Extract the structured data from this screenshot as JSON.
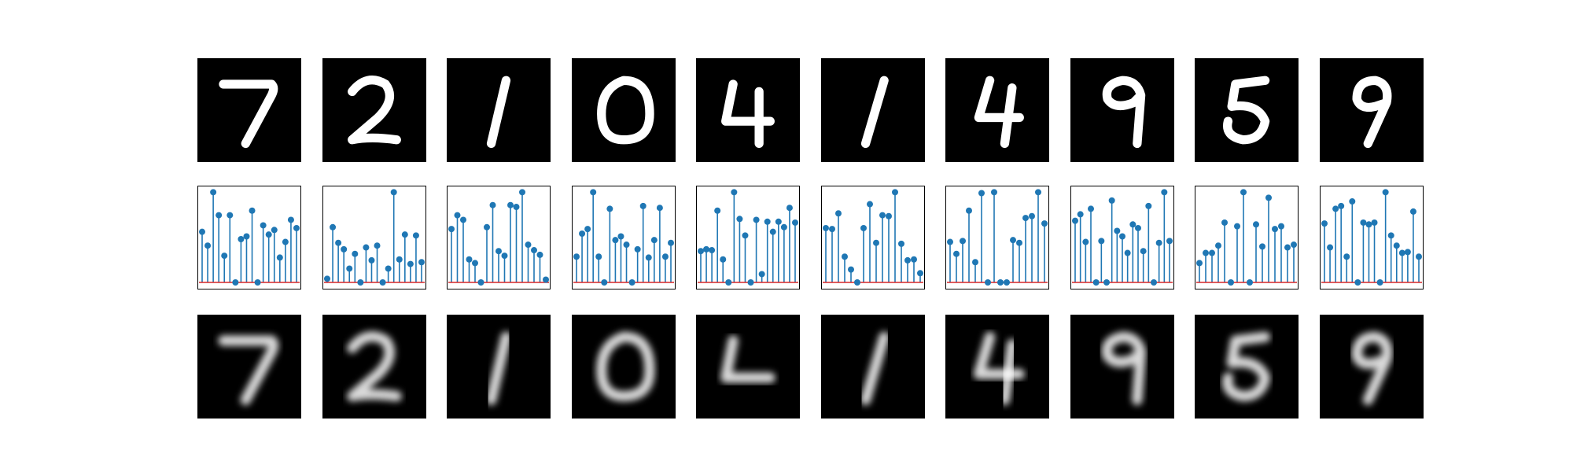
{
  "chart_data": {
    "type": "stem",
    "description_rows": [
      "original",
      "latent code",
      "reconstruction"
    ],
    "digits": [
      7,
      2,
      1,
      0,
      4,
      1,
      4,
      9,
      5,
      9
    ],
    "latent_codes": [
      [
        0.55,
        0.4,
        0.98,
        0.73,
        0.29,
        0.73,
        0.0,
        0.47,
        0.5,
        0.78,
        0.0,
        0.62,
        0.52,
        0.57,
        0.27,
        0.44,
        0.68,
        0.59
      ],
      [
        0.04,
        0.6,
        0.43,
        0.36,
        0.15,
        0.31,
        0.0,
        0.38,
        0.24,
        0.4,
        0.0,
        0.15,
        0.98,
        0.25,
        0.52,
        0.2,
        0.51,
        0.22
      ],
      [
        0.58,
        0.73,
        0.68,
        0.25,
        0.21,
        0.0,
        0.6,
        0.84,
        0.34,
        0.29,
        0.84,
        0.82,
        0.98,
        0.41,
        0.35,
        0.3,
        0.03
      ],
      [
        0.28,
        0.53,
        0.58,
        0.98,
        0.28,
        0.0,
        0.8,
        0.46,
        0.5,
        0.41,
        0.0,
        0.36,
        0.83,
        0.27,
        0.46,
        0.81,
        0.28,
        0.43
      ],
      [
        0.34,
        0.36,
        0.35,
        0.78,
        0.25,
        0.0,
        0.98,
        0.69,
        0.51,
        0.0,
        0.68,
        0.09,
        0.66,
        0.55,
        0.66,
        0.6,
        0.81,
        0.65
      ],
      [
        0.59,
        0.58,
        0.75,
        0.28,
        0.14,
        0.0,
        0.59,
        0.85,
        0.43,
        0.73,
        0.72,
        0.98,
        0.42,
        0.24,
        0.25,
        0.1
      ],
      [
        0.44,
        0.31,
        0.45,
        0.78,
        0.22,
        0.97,
        0.0,
        0.98,
        0.0,
        0.0,
        0.46,
        0.43,
        0.7,
        0.72,
        0.98,
        0.64
      ],
      [
        0.67,
        0.74,
        0.44,
        0.8,
        0.0,
        0.45,
        0.0,
        0.89,
        0.56,
        0.5,
        0.32,
        0.63,
        0.59,
        0.34,
        0.83,
        0.0,
        0.43,
        0.98,
        0.45
      ],
      [
        0.21,
        0.32,
        0.32,
        0.4,
        0.65,
        0.0,
        0.61,
        0.98,
        0.0,
        0.63,
        0.39,
        0.92,
        0.58,
        0.61,
        0.38,
        0.41
      ],
      [
        0.64,
        0.38,
        0.8,
        0.83,
        0.28,
        0.88,
        0.0,
        0.65,
        0.63,
        0.65,
        0.0,
        0.98,
        0.51,
        0.4,
        0.32,
        0.33,
        0.77,
        0.28
      ]
    ],
    "ylim": [
      0,
      1
    ],
    "colors": {
      "stem": "#1f77b4",
      "marker": "#1f77b4",
      "baseline": "#d62728",
      "image_background": "#000000",
      "stroke": "#ffffff"
    }
  }
}
